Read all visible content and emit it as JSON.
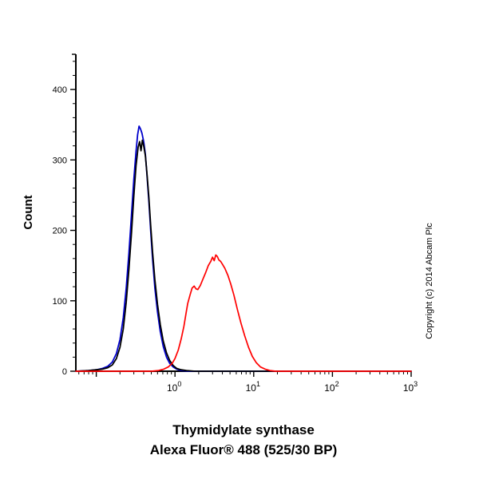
{
  "figure": {
    "ylabel": "Count",
    "xlabel_line1": "Thymidylate synthase",
    "xlabel_line2": "Alexa Fluor® 488 (525/30 BP)",
    "copyright": "Copyright (c) 2014 Abcam Plc"
  },
  "chart_data": {
    "type": "line",
    "subtype": "flow-cytometry-histogram",
    "title": "",
    "xlabel": "Thymidylate synthase — Alexa Fluor® 488 (525/30 BP)",
    "ylabel": "Count",
    "x_scale": "log10",
    "xlim": [
      0.055,
      1000
    ],
    "ylim": [
      0,
      450
    ],
    "yticks": [
      0,
      100,
      200,
      300,
      400
    ],
    "ytick_minor_step": 20,
    "xtick_exponents": [
      0,
      1,
      2,
      3
    ],
    "grid": false,
    "legend": "none",
    "background": "#ffffff",
    "axis_color": "#000000",
    "series": [
      {
        "name": "blue-control",
        "color": "#0000cc",
        "width": 1.8,
        "points": [
          [
            0.055,
            0
          ],
          [
            0.08,
            1
          ],
          [
            0.1,
            2
          ],
          [
            0.12,
            4
          ],
          [
            0.14,
            7
          ],
          [
            0.16,
            13
          ],
          [
            0.18,
            25
          ],
          [
            0.2,
            45
          ],
          [
            0.22,
            76
          ],
          [
            0.24,
            118
          ],
          [
            0.26,
            168
          ],
          [
            0.28,
            222
          ],
          [
            0.3,
            272
          ],
          [
            0.32,
            312
          ],
          [
            0.335,
            336
          ],
          [
            0.35,
            348
          ],
          [
            0.365,
            344
          ],
          [
            0.38,
            338
          ],
          [
            0.4,
            326
          ],
          [
            0.42,
            308
          ],
          [
            0.44,
            280
          ],
          [
            0.465,
            242
          ],
          [
            0.49,
            200
          ],
          [
            0.52,
            158
          ],
          [
            0.555,
            118
          ],
          [
            0.6,
            84
          ],
          [
            0.65,
            56
          ],
          [
            0.71,
            35
          ],
          [
            0.78,
            20
          ],
          [
            0.86,
            11
          ],
          [
            0.95,
            6
          ],
          [
            1.05,
            3
          ],
          [
            1.2,
            1
          ],
          [
            1.5,
            0
          ],
          [
            3,
            0
          ],
          [
            10,
            0
          ],
          [
            100,
            0
          ],
          [
            1000,
            0
          ]
        ]
      },
      {
        "name": "black-control",
        "color": "#000000",
        "width": 1.8,
        "points": [
          [
            0.055,
            0
          ],
          [
            0.08,
            1
          ],
          [
            0.1,
            2
          ],
          [
            0.12,
            3
          ],
          [
            0.14,
            5
          ],
          [
            0.16,
            9
          ],
          [
            0.18,
            18
          ],
          [
            0.2,
            34
          ],
          [
            0.22,
            60
          ],
          [
            0.24,
            98
          ],
          [
            0.26,
            145
          ],
          [
            0.28,
            196
          ],
          [
            0.3,
            248
          ],
          [
            0.32,
            292
          ],
          [
            0.34,
            318
          ],
          [
            0.355,
            326
          ],
          [
            0.37,
            313
          ],
          [
            0.385,
            328
          ],
          [
            0.4,
            320
          ],
          [
            0.42,
            306
          ],
          [
            0.44,
            282
          ],
          [
            0.465,
            248
          ],
          [
            0.49,
            208
          ],
          [
            0.52,
            168
          ],
          [
            0.555,
            130
          ],
          [
            0.6,
            95
          ],
          [
            0.65,
            66
          ],
          [
            0.71,
            43
          ],
          [
            0.78,
            26
          ],
          [
            0.86,
            15
          ],
          [
            0.95,
            8
          ],
          [
            1.05,
            4
          ],
          [
            1.2,
            2
          ],
          [
            1.4,
            1
          ],
          [
            1.8,
            0
          ],
          [
            3,
            0
          ],
          [
            10,
            0
          ],
          [
            100,
            0
          ],
          [
            1000,
            0
          ]
        ]
      },
      {
        "name": "red-sample",
        "color": "#ff0000",
        "width": 1.7,
        "points": [
          [
            0.055,
            0
          ],
          [
            0.3,
            0
          ],
          [
            0.5,
            0
          ],
          [
            0.62,
            1
          ],
          [
            0.72,
            3
          ],
          [
            0.82,
            6
          ],
          [
            0.92,
            11
          ],
          [
            1.0,
            18
          ],
          [
            1.1,
            30
          ],
          [
            1.2,
            46
          ],
          [
            1.3,
            64
          ],
          [
            1.38,
            82
          ],
          [
            1.45,
            96
          ],
          [
            1.55,
            108
          ],
          [
            1.65,
            118
          ],
          [
            1.75,
            121
          ],
          [
            1.85,
            117
          ],
          [
            1.95,
            116
          ],
          [
            2.1,
            122
          ],
          [
            2.25,
            130
          ],
          [
            2.45,
            140
          ],
          [
            2.65,
            150
          ],
          [
            2.85,
            156
          ],
          [
            3.0,
            162
          ],
          [
            3.15,
            157
          ],
          [
            3.3,
            165
          ],
          [
            3.45,
            163
          ],
          [
            3.6,
            158
          ],
          [
            3.8,
            156
          ],
          [
            4.0,
            152
          ],
          [
            4.3,
            146
          ],
          [
            4.7,
            136
          ],
          [
            5.1,
            124
          ],
          [
            5.6,
            108
          ],
          [
            6.2,
            88
          ],
          [
            6.9,
            68
          ],
          [
            7.7,
            50
          ],
          [
            8.6,
            34
          ],
          [
            9.6,
            21
          ],
          [
            10.8,
            12
          ],
          [
            12.2,
            6
          ],
          [
            14,
            3
          ],
          [
            16,
            1
          ],
          [
            19,
            0
          ],
          [
            50,
            0
          ],
          [
            100,
            0
          ],
          [
            1000,
            0
          ]
        ]
      }
    ]
  }
}
